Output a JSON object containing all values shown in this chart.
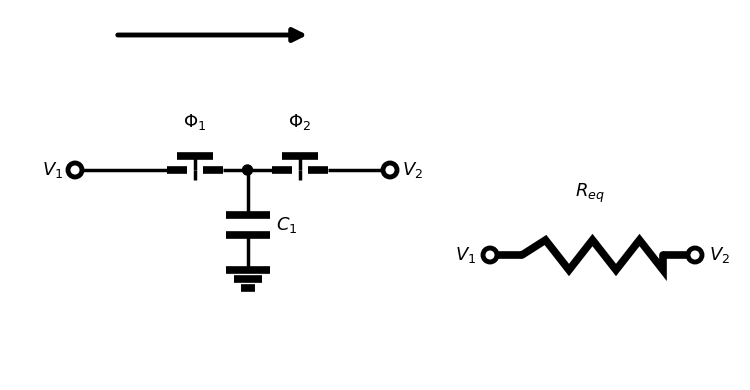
{
  "bg_color": "#ffffff",
  "line_color": "#000000",
  "lw_thin": 2.5,
  "lw_thick": 5.5,
  "fig_width": 7.5,
  "fig_height": 3.9,
  "dpi": 100
}
